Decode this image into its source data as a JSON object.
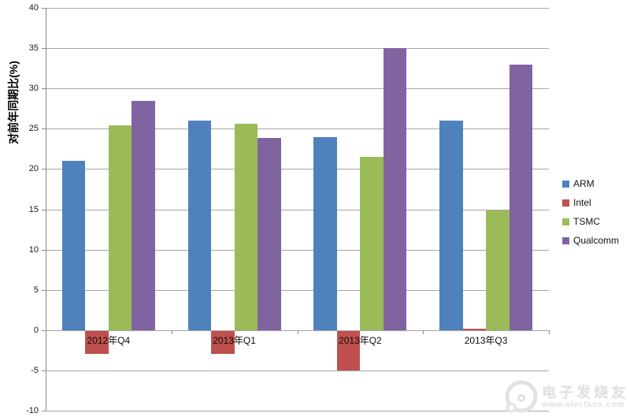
{
  "chart_data": {
    "type": "bar",
    "ylabel": "对前年同期比(%)",
    "ylim": [
      -10,
      40
    ],
    "ytick_step": 5,
    "yticks": [
      40,
      35,
      30,
      25,
      20,
      15,
      10,
      5,
      0,
      -5,
      -10
    ],
    "grid": "horizontal",
    "legend_position": "right",
    "categories": [
      "2012年Q4",
      "2013年Q1",
      "2013年Q2",
      "2013年Q3"
    ],
    "series": [
      {
        "name": "ARM",
        "color": "#4F81BD",
        "values": [
          21,
          26,
          24,
          26
        ]
      },
      {
        "name": "Intel",
        "color": "#C0504D",
        "values": [
          -3,
          -3,
          -5,
          0.2
        ]
      },
      {
        "name": "TSMC",
        "color": "#9BBB59",
        "values": [
          25.4,
          25.6,
          21.5,
          14.9
        ]
      },
      {
        "name": "Qualcomm",
        "color": "#8064A2",
        "values": [
          28.5,
          23.9,
          35,
          33
        ]
      }
    ]
  },
  "watermark": {
    "brand": "电子发烧友",
    "url": "www.elecfans.com"
  },
  "colors": {
    "gridline": "#a6a6a6",
    "axis": "#8a8a8a",
    "tick_text": "#181818",
    "watermark": "#e2e2e2"
  }
}
